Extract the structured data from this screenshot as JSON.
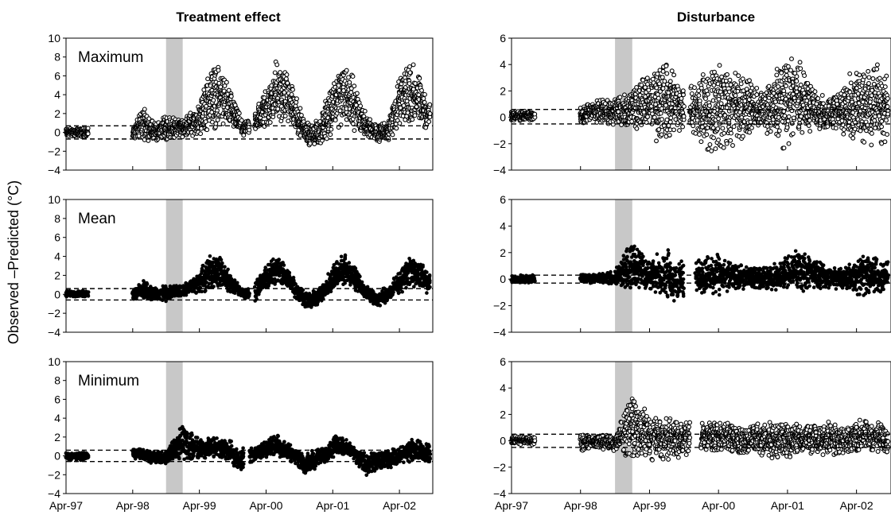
{
  "figure": {
    "column_titles": [
      "Treatment effect",
      "Disturbance"
    ],
    "ylabel": "Observed –Predicted (°C)",
    "x_tick_labels": [
      "Apr-97",
      "Apr-98",
      "Apr-99",
      "Apr-00",
      "Apr-01",
      "Apr-02"
    ]
  },
  "chart_data": [
    {
      "type": "scatter",
      "column": "Treatment effect",
      "row": 0,
      "label": "Maximum",
      "ylim": [
        -4,
        10
      ],
      "yticks": [
        -4,
        -2,
        0,
        2,
        4,
        6,
        8,
        10
      ],
      "x_ticks": [
        "Apr-97",
        "Apr-98",
        "Apr-99",
        "Apr-00",
        "Apr-01",
        "Apr-02"
      ],
      "reference_lines": [
        0.7,
        -0.7
      ],
      "shaded_period": [
        "Oct-98",
        "Jan-99"
      ],
      "marker": "open",
      "gaps": [
        [
          "Aug-97",
          "Apr-98"
        ],
        [
          "Jan-00",
          "Feb-00"
        ]
      ],
      "envelope_by_month": [
        {
          "x": "Apr-97",
          "low": -0.5,
          "high": 0.5
        },
        {
          "x": "Jul-97",
          "low": -0.5,
          "high": 0.5
        },
        {
          "x": "Apr-98",
          "low": -0.8,
          "high": 0.6
        },
        {
          "x": "Jun-98",
          "low": -0.8,
          "high": 3.0
        },
        {
          "x": "Aug-98",
          "low": -1.0,
          "high": 1.0
        },
        {
          "x": "Oct-98",
          "low": -1.0,
          "high": 2.0
        },
        {
          "x": "Jan-99",
          "low": -0.5,
          "high": 1.5
        },
        {
          "x": "Apr-99",
          "low": -0.5,
          "high": 3.0
        },
        {
          "x": "Jun-99",
          "low": 0.0,
          "high": 7.8
        },
        {
          "x": "Aug-99",
          "low": 0.5,
          "high": 7.2
        },
        {
          "x": "Oct-99",
          "low": 0.0,
          "high": 4.0
        },
        {
          "x": "Dec-99",
          "low": -0.5,
          "high": 1.0
        },
        {
          "x": "Feb-00",
          "low": -0.3,
          "high": 2.5
        },
        {
          "x": "Apr-00",
          "low": 0.3,
          "high": 5.0
        },
        {
          "x": "Jun-00",
          "low": 0.8,
          "high": 8.2
        },
        {
          "x": "Aug-00",
          "low": 0.5,
          "high": 6.5
        },
        {
          "x": "Oct-00",
          "low": -0.5,
          "high": 3.0
        },
        {
          "x": "Dec-00",
          "low": -1.5,
          "high": 0.8
        },
        {
          "x": "Feb-01",
          "low": -1.5,
          "high": 2.0
        },
        {
          "x": "Apr-01",
          "low": 0.0,
          "high": 6.0
        },
        {
          "x": "Jun-01",
          "low": 0.3,
          "high": 8.6
        },
        {
          "x": "Aug-01",
          "low": 0.0,
          "high": 5.5
        },
        {
          "x": "Oct-01",
          "low": -0.5,
          "high": 2.0
        },
        {
          "x": "Dec-01",
          "low": -1.0,
          "high": 0.8
        },
        {
          "x": "Feb-02",
          "low": -1.0,
          "high": 1.5
        },
        {
          "x": "Apr-02",
          "low": 0.0,
          "high": 6.5
        },
        {
          "x": "Jun-02",
          "low": 0.5,
          "high": 8.0
        },
        {
          "x": "Aug-02",
          "low": 0.0,
          "high": 6.0
        },
        {
          "x": "Sep-02",
          "low": 0.0,
          "high": 4.0
        }
      ]
    },
    {
      "type": "scatter",
      "column": "Treatment effect",
      "row": 1,
      "label": "Mean",
      "ylim": [
        -4,
        10
      ],
      "yticks": [
        -4,
        -2,
        0,
        2,
        4,
        6,
        8,
        10
      ],
      "x_ticks": [
        "Apr-97",
        "Apr-98",
        "Apr-99",
        "Apr-00",
        "Apr-01",
        "Apr-02"
      ],
      "reference_lines": [
        0.6,
        -0.6
      ],
      "shaded_period": [
        "Oct-98",
        "Jan-99"
      ],
      "marker": "filled",
      "gaps": [
        [
          "Aug-97",
          "Apr-98"
        ],
        [
          "Jan-00",
          "Feb-00"
        ]
      ],
      "envelope_by_month": [
        {
          "x": "Apr-97",
          "low": -0.3,
          "high": 0.4
        },
        {
          "x": "Jul-97",
          "low": -0.3,
          "high": 0.4
        },
        {
          "x": "Apr-98",
          "low": -0.5,
          "high": 0.6
        },
        {
          "x": "Jun-98",
          "low": -0.6,
          "high": 1.5
        },
        {
          "x": "Aug-98",
          "low": -0.8,
          "high": 0.8
        },
        {
          "x": "Oct-98",
          "low": -0.8,
          "high": 1.0
        },
        {
          "x": "Jan-99",
          "low": -0.3,
          "high": 1.0
        },
        {
          "x": "Apr-99",
          "low": 0.0,
          "high": 2.5
        },
        {
          "x": "Jun-99",
          "low": 0.5,
          "high": 4.5
        },
        {
          "x": "Aug-99",
          "low": 0.5,
          "high": 4.0
        },
        {
          "x": "Oct-99",
          "low": 0.0,
          "high": 2.0
        },
        {
          "x": "Dec-99",
          "low": -0.5,
          "high": 0.5
        },
        {
          "x": "Feb-00",
          "low": -1.0,
          "high": 1.5
        },
        {
          "x": "Apr-00",
          "low": 0.5,
          "high": 3.0
        },
        {
          "x": "Jun-00",
          "low": 1.0,
          "high": 4.5
        },
        {
          "x": "Aug-00",
          "low": 0.3,
          "high": 3.0
        },
        {
          "x": "Oct-00",
          "low": -1.0,
          "high": 1.0
        },
        {
          "x": "Dec-00",
          "low": -1.8,
          "high": 0.3
        },
        {
          "x": "Feb-01",
          "low": -1.0,
          "high": 1.0
        },
        {
          "x": "Apr-01",
          "low": 0.3,
          "high": 3.0
        },
        {
          "x": "Jun-01",
          "low": 1.0,
          "high": 4.5
        },
        {
          "x": "Aug-01",
          "low": 0.3,
          "high": 3.0
        },
        {
          "x": "Oct-01",
          "low": -0.5,
          "high": 1.0
        },
        {
          "x": "Dec-01",
          "low": -1.5,
          "high": 0.3
        },
        {
          "x": "Feb-02",
          "low": -1.0,
          "high": 1.0
        },
        {
          "x": "Apr-02",
          "low": 0.0,
          "high": 2.5
        },
        {
          "x": "Jun-02",
          "low": 0.8,
          "high": 4.2
        },
        {
          "x": "Aug-02",
          "low": 0.3,
          "high": 3.5
        },
        {
          "x": "Sep-02",
          "low": 0.0,
          "high": 2.5
        }
      ]
    },
    {
      "type": "scatter",
      "column": "Treatment effect",
      "row": 2,
      "label": "Minimum",
      "ylim": [
        -4,
        10
      ],
      "yticks": [
        -4,
        -2,
        0,
        2,
        4,
        6,
        8,
        10
      ],
      "x_ticks": [
        "Apr-97",
        "Apr-98",
        "Apr-99",
        "Apr-00",
        "Apr-01",
        "Apr-02"
      ],
      "reference_lines": [
        0.6,
        -0.6
      ],
      "shaded_period": [
        "Oct-98",
        "Jan-99"
      ],
      "marker": "filled",
      "gaps": [
        [
          "Aug-97",
          "Apr-98"
        ],
        [
          "Dec-99",
          "Jan-00"
        ]
      ],
      "envelope_by_month": [
        {
          "x": "Apr-97",
          "low": -0.5,
          "high": 0.4
        },
        {
          "x": "Jul-97",
          "low": -0.5,
          "high": 0.4
        },
        {
          "x": "Apr-98",
          "low": -0.3,
          "high": 1.0
        },
        {
          "x": "Jun-98",
          "low": -0.5,
          "high": 0.8
        },
        {
          "x": "Aug-98",
          "low": -1.0,
          "high": 0.5
        },
        {
          "x": "Oct-98",
          "low": -1.0,
          "high": 0.5
        },
        {
          "x": "Jan-99",
          "low": -0.5,
          "high": 3.8
        },
        {
          "x": "Mar-99",
          "low": -0.5,
          "high": 2.5
        },
        {
          "x": "Jun-99",
          "low": -0.3,
          "high": 2.0
        },
        {
          "x": "Sep-99",
          "low": -0.5,
          "high": 2.0
        },
        {
          "x": "Nov-99",
          "low": -1.8,
          "high": 0.8
        },
        {
          "x": "Feb-00",
          "low": -0.5,
          "high": 1.0
        },
        {
          "x": "Jun-00",
          "low": 0.0,
          "high": 2.5
        },
        {
          "x": "Sep-00",
          "low": -0.8,
          "high": 1.0
        },
        {
          "x": "Nov-00",
          "low": -2.0,
          "high": 0.3
        },
        {
          "x": "Feb-01",
          "low": -1.0,
          "high": 1.0
        },
        {
          "x": "May-01",
          "low": 0.0,
          "high": 2.5
        },
        {
          "x": "Aug-01",
          "low": -0.5,
          "high": 1.0
        },
        {
          "x": "Oct-01",
          "low": -2.5,
          "high": 0.5
        },
        {
          "x": "Jan-02",
          "low": -1.5,
          "high": 0.5
        },
        {
          "x": "Apr-02",
          "low": -1.0,
          "high": 1.0
        },
        {
          "x": "Jul-02",
          "low": -0.5,
          "high": 2.0
        },
        {
          "x": "Sep-02",
          "low": -1.0,
          "high": 1.5
        }
      ]
    },
    {
      "type": "scatter",
      "column": "Disturbance",
      "row": 0,
      "ylim": [
        -4,
        6
      ],
      "yticks": [
        -4,
        -2,
        0,
        2,
        4,
        6
      ],
      "x_ticks": [
        "Apr-97",
        "Apr-98",
        "Apr-99",
        "Apr-00",
        "Apr-01",
        "Apr-02"
      ],
      "reference_lines": [
        0.6,
        -0.5
      ],
      "shaded_period": [
        "Oct-98",
        "Jan-99"
      ],
      "marker": "open",
      "gaps": [
        [
          "Aug-97",
          "Apr-98"
        ],
        [
          "Oct-99",
          "Nov-99"
        ]
      ],
      "envelope_by_month": [
        {
          "x": "Apr-97",
          "low": -0.3,
          "high": 0.5
        },
        {
          "x": "Jul-97",
          "low": -0.3,
          "high": 0.5
        },
        {
          "x": "Apr-98",
          "low": -0.5,
          "high": 0.8
        },
        {
          "x": "Jul-98",
          "low": -0.5,
          "high": 1.5
        },
        {
          "x": "Oct-98",
          "low": -0.8,
          "high": 1.5
        },
        {
          "x": "Jan-99",
          "low": -1.0,
          "high": 2.5
        },
        {
          "x": "Apr-99",
          "low": -1.5,
          "high": 3.5
        },
        {
          "x": "Jun-99",
          "low": -2.5,
          "high": 5.0
        },
        {
          "x": "Aug-99",
          "low": -2.0,
          "high": 4.0
        },
        {
          "x": "Oct-99",
          "low": -1.0,
          "high": 2.5
        },
        {
          "x": "Dec-99",
          "low": -1.5,
          "high": 3.0
        },
        {
          "x": "Mar-00",
          "low": -3.2,
          "high": 4.5
        },
        {
          "x": "Jun-00",
          "low": -2.5,
          "high": 4.5
        },
        {
          "x": "Sep-00",
          "low": -1.5,
          "high": 3.0
        },
        {
          "x": "Dec-00",
          "low": -1.0,
          "high": 2.0
        },
        {
          "x": "Mar-01",
          "low": -2.8,
          "high": 4.8
        },
        {
          "x": "Jun-01",
          "low": -1.5,
          "high": 4.8
        },
        {
          "x": "Sep-01",
          "low": -1.0,
          "high": 2.0
        },
        {
          "x": "Dec-01",
          "low": -1.0,
          "high": 1.5
        },
        {
          "x": "Mar-02",
          "low": -2.0,
          "high": 3.5
        },
        {
          "x": "Jun-02",
          "low": -2.8,
          "high": 5.0
        },
        {
          "x": "Sep-02",
          "low": -2.5,
          "high": 4.0
        }
      ]
    },
    {
      "type": "scatter",
      "column": "Disturbance",
      "row": 1,
      "ylim": [
        -4,
        6
      ],
      "yticks": [
        -4,
        -2,
        0,
        2,
        4,
        6
      ],
      "x_ticks": [
        "Apr-97",
        "Apr-98",
        "Apr-99",
        "Apr-00",
        "Apr-01",
        "Apr-02"
      ],
      "reference_lines": [
        0.3,
        -0.3
      ],
      "shaded_period": [
        "Oct-98",
        "Jan-99"
      ],
      "marker": "filled",
      "gaps": [
        [
          "Aug-97",
          "Apr-98"
        ],
        [
          "Oct-99",
          "Dec-99"
        ]
      ],
      "envelope_by_month": [
        {
          "x": "Apr-97",
          "low": -0.3,
          "high": 0.3
        },
        {
          "x": "Jul-97",
          "low": -0.3,
          "high": 0.3
        },
        {
          "x": "Apr-98",
          "low": -0.4,
          "high": 0.5
        },
        {
          "x": "Jul-98",
          "low": -0.3,
          "high": 0.4
        },
        {
          "x": "Oct-98",
          "low": -0.5,
          "high": 0.8
        },
        {
          "x": "Jan-99",
          "low": -1.0,
          "high": 3.0
        },
        {
          "x": "Apr-99",
          "low": -1.0,
          "high": 1.5
        },
        {
          "x": "Jul-99",
          "low": -1.5,
          "high": 2.5
        },
        {
          "x": "Sep-99",
          "low": -2.0,
          "high": 1.5
        },
        {
          "x": "Dec-99",
          "low": -1.0,
          "high": 1.5
        },
        {
          "x": "Mar-00",
          "low": -1.5,
          "high": 2.0
        },
        {
          "x": "Jun-00",
          "low": -1.0,
          "high": 1.5
        },
        {
          "x": "Sep-00",
          "low": -0.8,
          "high": 1.0
        },
        {
          "x": "Dec-00",
          "low": -0.8,
          "high": 1.0
        },
        {
          "x": "Mar-01",
          "low": -1.0,
          "high": 1.5
        },
        {
          "x": "Jun-01",
          "low": -1.0,
          "high": 2.5
        },
        {
          "x": "Sep-01",
          "low": -0.8,
          "high": 1.5
        },
        {
          "x": "Dec-01",
          "low": -0.8,
          "high": 1.0
        },
        {
          "x": "Mar-02",
          "low": -1.0,
          "high": 1.5
        },
        {
          "x": "Jun-02",
          "low": -1.5,
          "high": 2.0
        },
        {
          "x": "Sep-02",
          "low": -1.0,
          "high": 1.5
        }
      ]
    },
    {
      "type": "scatter",
      "column": "Disturbance",
      "row": 2,
      "ylim": [
        -4,
        6
      ],
      "yticks": [
        -4,
        -2,
        0,
        2,
        4,
        6
      ],
      "x_ticks": [
        "Apr-97",
        "Apr-98",
        "Apr-99",
        "Apr-00",
        "Apr-01",
        "Apr-02"
      ],
      "reference_lines": [
        0.5,
        -0.5
      ],
      "shaded_period": [
        "Oct-98",
        "Jan-99"
      ],
      "marker": "open",
      "gaps": [
        [
          "Aug-97",
          "Apr-98"
        ],
        [
          "Nov-99",
          "Jan-00"
        ]
      ],
      "envelope_by_month": [
        {
          "x": "Apr-97",
          "low": -0.3,
          "high": 0.4
        },
        {
          "x": "Jul-97",
          "low": -0.3,
          "high": 0.4
        },
        {
          "x": "Apr-98",
          "low": -0.8,
          "high": 0.6
        },
        {
          "x": "Jul-98",
          "low": -0.6,
          "high": 0.5
        },
        {
          "x": "Oct-98",
          "low": -0.8,
          "high": 0.5
        },
        {
          "x": "Jan-99",
          "low": -1.5,
          "high": 4.0
        },
        {
          "x": "Apr-99",
          "low": -1.5,
          "high": 2.0
        },
        {
          "x": "Jul-99",
          "low": -1.5,
          "high": 1.8
        },
        {
          "x": "Oct-99",
          "low": -1.2,
          "high": 1.5
        },
        {
          "x": "Feb-00",
          "low": -1.0,
          "high": 1.5
        },
        {
          "x": "May-00",
          "low": -0.8,
          "high": 1.5
        },
        {
          "x": "Aug-00",
          "low": -1.2,
          "high": 1.2
        },
        {
          "x": "Nov-00",
          "low": -1.2,
          "high": 1.5
        },
        {
          "x": "Feb-01",
          "low": -1.5,
          "high": 1.5
        },
        {
          "x": "May-01",
          "low": -1.2,
          "high": 1.5
        },
        {
          "x": "Aug-01",
          "low": -1.0,
          "high": 1.2
        },
        {
          "x": "Nov-01",
          "low": -1.2,
          "high": 1.5
        },
        {
          "x": "Feb-02",
          "low": -1.2,
          "high": 1.2
        },
        {
          "x": "May-02",
          "low": -1.0,
          "high": 1.8
        },
        {
          "x": "Aug-02",
          "low": -1.0,
          "high": 1.5
        },
        {
          "x": "Sep-02",
          "low": -1.0,
          "high": 1.2
        }
      ]
    }
  ]
}
